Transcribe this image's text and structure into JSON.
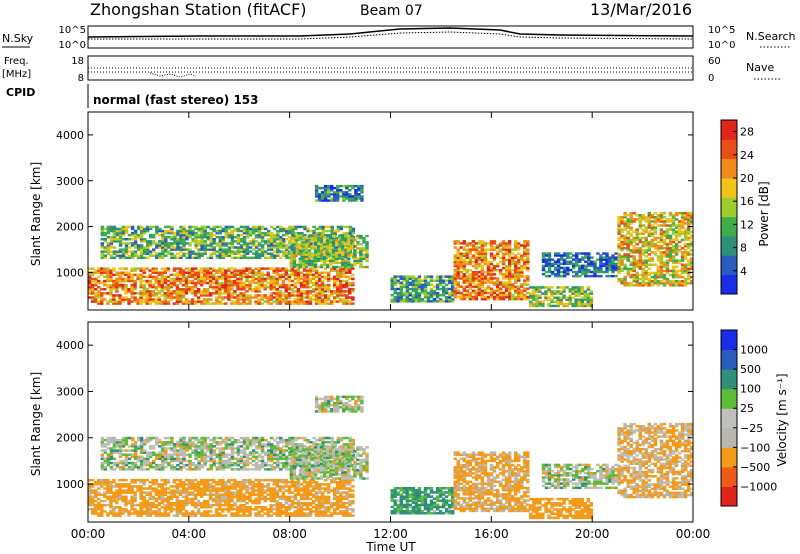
{
  "header": {
    "station": "Zhongshan Station (fitACF)",
    "beam": "Beam 07",
    "date": "13/Mar/2016"
  },
  "noise_panel": {
    "left_label": "N.Sky",
    "right_label": "N.Search",
    "left_ticks": [
      "10^5",
      "10^0"
    ],
    "right_ticks": [
      "10^5",
      "10^0"
    ]
  },
  "freq_panel": {
    "left_label": "Freq.",
    "left_unit": "[MHz]",
    "right_label": "Nave",
    "left_ticks": [
      "18",
      "8"
    ],
    "right_ticks": [
      "60",
      "0"
    ]
  },
  "cpid": {
    "label": "CPID",
    "value": "normal (fast stereo) 153"
  },
  "colors": {
    "power_scale": [
      "#1a2ee8",
      "#2a5cc0",
      "#2e8f7a",
      "#3fae4a",
      "#9ccc2e",
      "#f2c21a",
      "#f08a1a",
      "#e84e16",
      "#e0261a"
    ],
    "velocity_scale": [
      "#e0261a",
      "#f05a18",
      "#f49a1a",
      "#b8b8b0",
      "#c0c0ba",
      "#5dbb3a",
      "#2e8f7a",
      "#2a5cc0",
      "#1a2ee8"
    ]
  },
  "chart_data": [
    {
      "type": "heatmap",
      "title": "",
      "quantity": "Power",
      "xlabel": "Time UT",
      "ylabel": "Slant Range [km]",
      "xlim": [
        "00:00",
        "24:00"
      ],
      "ylim": [
        180,
        4500
      ],
      "x_ticks": [
        "00:00",
        "04:00",
        "08:00",
        "12:00",
        "16:00",
        "20:00",
        "00:00"
      ],
      "y_ticks": [
        "1000",
        "2000",
        "3000",
        "4000"
      ],
      "colorbar": {
        "label": "Power [dB]",
        "ticks": [
          "4",
          "8",
          "12",
          "16",
          "20",
          "24",
          "28"
        ],
        "range": [
          0,
          30
        ]
      },
      "echo_regions": [
        {
          "t_start": 0.0,
          "t_end": 10.5,
          "r_min": 300,
          "r_max": 1100,
          "level": 22
        },
        {
          "t_start": 0.5,
          "t_end": 10.5,
          "r_min": 1300,
          "r_max": 2000,
          "level": 12
        },
        {
          "t_start": 8.0,
          "t_end": 11.0,
          "r_min": 1100,
          "r_max": 1800,
          "level": 14
        },
        {
          "t_start": 9.0,
          "t_end": 10.8,
          "r_min": 2550,
          "r_max": 2900,
          "level": 8
        },
        {
          "t_start": 12.0,
          "t_end": 14.5,
          "r_min": 350,
          "r_max": 900,
          "level": 10
        },
        {
          "t_start": 14.5,
          "t_end": 17.5,
          "r_min": 400,
          "r_max": 1700,
          "level": 22
        },
        {
          "t_start": 18.0,
          "t_end": 21.0,
          "r_min": 900,
          "r_max": 1400,
          "level": 6
        },
        {
          "t_start": 17.5,
          "t_end": 20.0,
          "r_min": 250,
          "r_max": 700,
          "level": 14
        },
        {
          "t_start": 21.0,
          "t_end": 24.0,
          "r_min": 700,
          "r_max": 2300,
          "level": 18
        }
      ]
    },
    {
      "type": "heatmap",
      "title": "",
      "quantity": "Velocity",
      "xlabel": "Time UT",
      "ylabel": "Slant Range [km]",
      "xlim": [
        "00:00",
        "24:00"
      ],
      "ylim": [
        180,
        4500
      ],
      "x_ticks": [
        "00:00",
        "04:00",
        "08:00",
        "12:00",
        "16:00",
        "20:00",
        "00:00"
      ],
      "y_ticks": [
        "1000",
        "2000",
        "3000",
        "4000"
      ],
      "colorbar": {
        "label": "Velocity [m s⁻¹]",
        "ticks": [
          "-1000",
          "-500",
          "-100",
          "-25",
          "25",
          "100",
          "500",
          "1000"
        ]
      },
      "echo_regions": [
        {
          "t_start": 0.0,
          "t_end": 10.5,
          "r_min": 300,
          "r_max": 1100,
          "level": -200
        },
        {
          "t_start": 0.5,
          "t_end": 10.5,
          "r_min": 1300,
          "r_max": 2000,
          "level": 0
        },
        {
          "t_start": 8.0,
          "t_end": 11.0,
          "r_min": 1100,
          "r_max": 1800,
          "level": 0
        },
        {
          "t_start": 9.0,
          "t_end": 10.8,
          "r_min": 2550,
          "r_max": 2900,
          "level": 0
        },
        {
          "t_start": 12.0,
          "t_end": 14.5,
          "r_min": 350,
          "r_max": 900,
          "level": 150
        },
        {
          "t_start": 14.5,
          "t_end": 17.5,
          "r_min": 400,
          "r_max": 1700,
          "level": -150
        },
        {
          "t_start": 18.0,
          "t_end": 21.0,
          "r_min": 900,
          "r_max": 1400,
          "level": 0
        },
        {
          "t_start": 17.5,
          "t_end": 20.0,
          "r_min": 250,
          "r_max": 700,
          "level": -300
        },
        {
          "t_start": 21.0,
          "t_end": 24.0,
          "r_min": 700,
          "r_max": 2300,
          "level": -120
        }
      ]
    }
  ]
}
